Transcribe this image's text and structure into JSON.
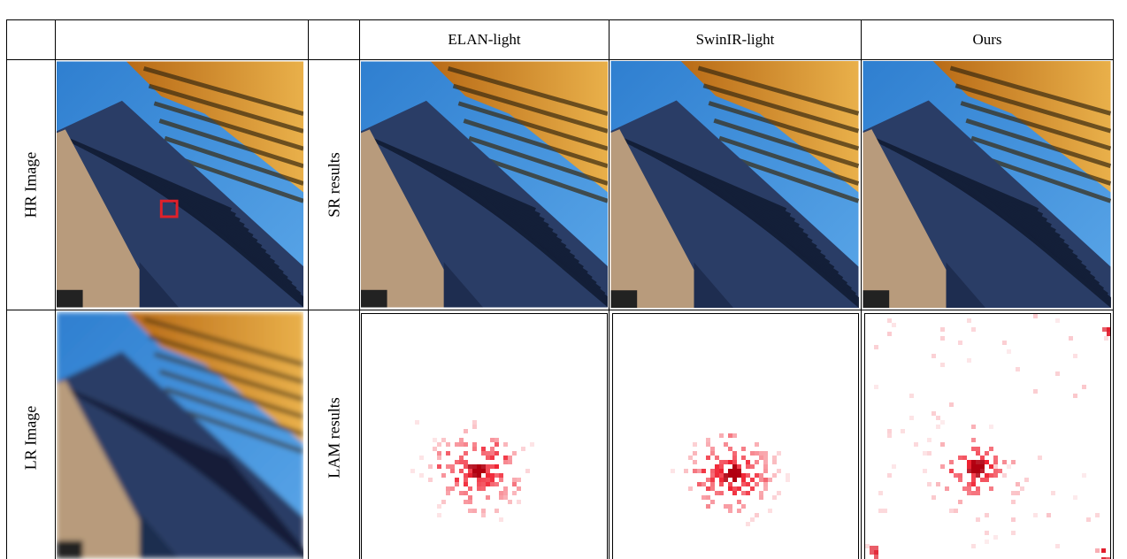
{
  "header": {
    "columns": [
      "ELAN-light",
      "SwinIR-light",
      "Ours"
    ]
  },
  "rows": [
    {
      "label": "HR Image",
      "result_label": "SR results"
    },
    {
      "label": "LR Image",
      "result_label": "LAM results"
    }
  ]
}
